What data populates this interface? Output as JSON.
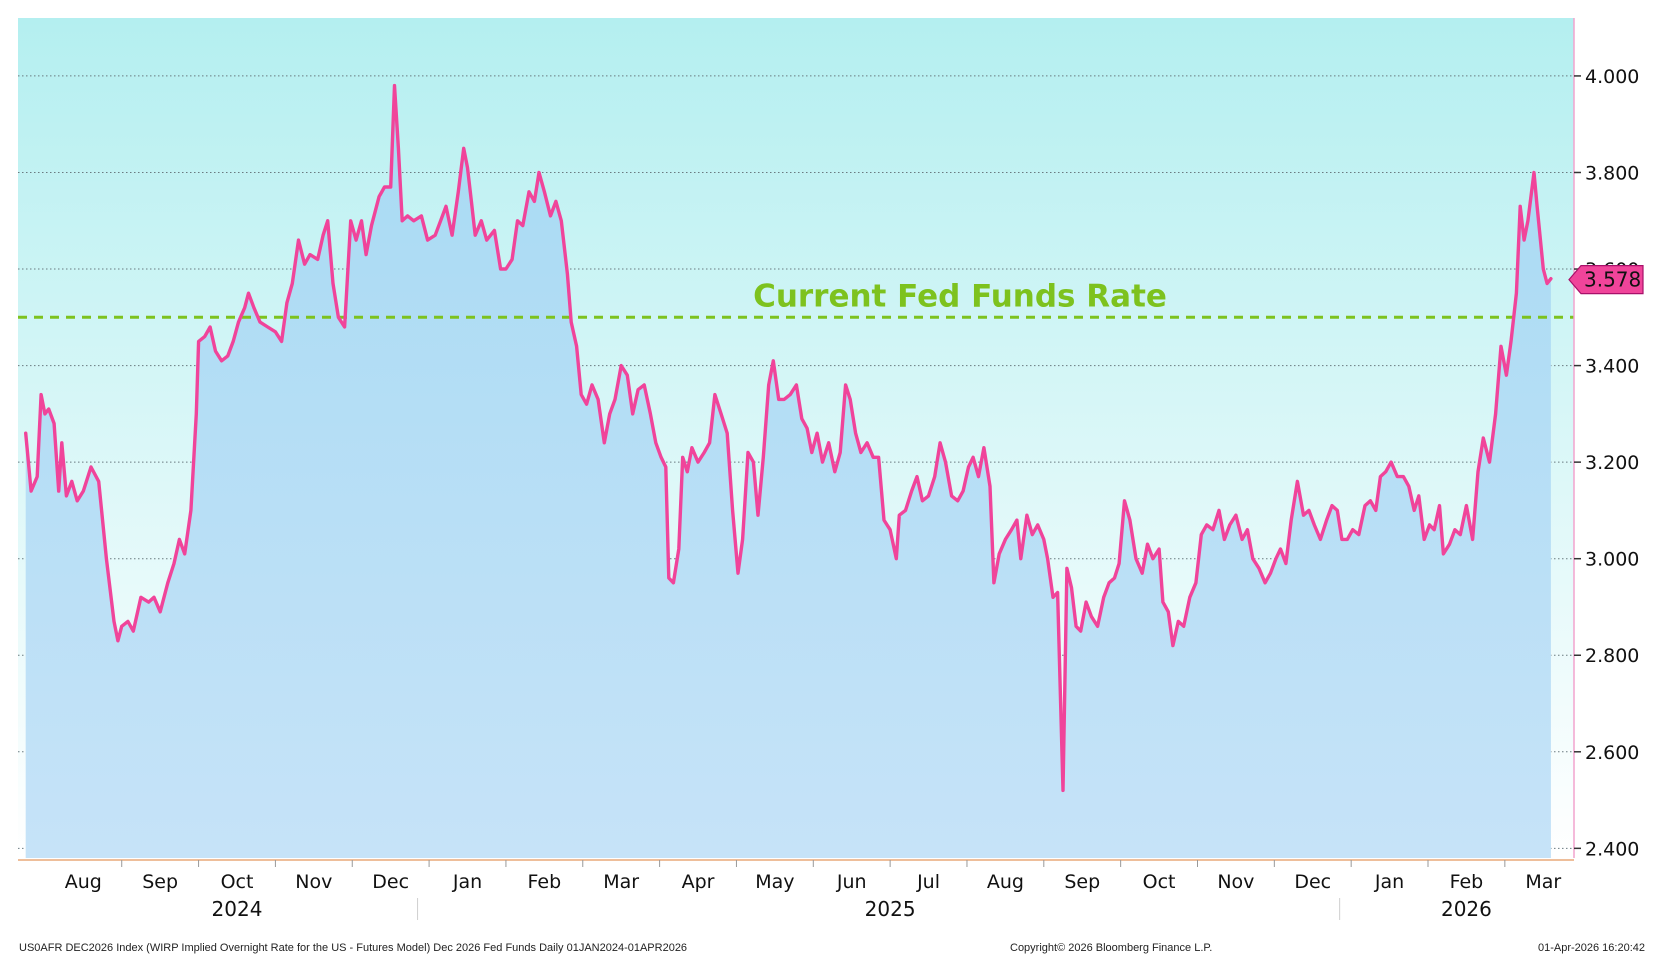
{
  "chart_data": {
    "type": "area",
    "ticker": "US0AFR DEC2026 Index",
    "title": "(WIRP Implied Overnight Rate for the US - Futures Model) Dec 2026 Fed Funds",
    "footer_left": "US0AFR DEC2026 Index (WIRP Implied Overnight Rate for the US - Futures Model) Dec 2026 Fed Funds Daily 01JAN2024-01APR2026",
    "copyright": "Copyright© 2026 Bloomberg Finance L.P.",
    "timestamp": "01-Apr-2026 16:20:42",
    "frequency": "Daily",
    "date_range": "01JAN2024-01APR2026",
    "ylim": [
      2.38,
      4.12
    ],
    "y_ticks": [
      "2.400",
      "2.600",
      "2.800",
      "3.000",
      "3.200",
      "3.400",
      "3.600",
      "3.800",
      "4.000"
    ],
    "y_tick_values": [
      2.4,
      2.6,
      2.8,
      3.0,
      3.2,
      3.4,
      3.6,
      3.8,
      4.0
    ],
    "x_tick_labels": [
      "Aug",
      "Sep",
      "Oct",
      "Nov",
      "Dec",
      "Jan",
      "Feb",
      "Mar",
      "Apr",
      "May",
      "Jun",
      "Jul",
      "Aug",
      "Sep",
      "Oct",
      "Nov",
      "Dec",
      "Jan",
      "Feb",
      "Mar"
    ],
    "x_tick_positions": [
      0.5,
      1.5,
      2.5,
      3.5,
      4.5,
      5.5,
      6.5,
      7.5,
      8.5,
      9.5,
      10.5,
      11.5,
      12.5,
      13.5,
      14.5,
      15.5,
      16.5,
      17.5,
      18.5,
      19.5
    ],
    "xlim": [
      -0.35,
      19.9
    ],
    "year_labels": [
      {
        "label": "2024",
        "x": 2.5
      },
      {
        "label": "2025",
        "x": 11.0
      },
      {
        "label": "2026",
        "x": 18.5
      }
    ],
    "year_dividers": [
      4.85,
      16.85
    ],
    "reference_line": {
      "label": "Current Fed Funds Rate",
      "value": 3.5,
      "color": "#7dc21e"
    },
    "last_value": "3.578",
    "last_value_number": 3.578,
    "line_color": "#f0449a",
    "fill_top_color": "#a7daf3",
    "fill_bottom_color": "#c6e3f8",
    "bg_top_color": "#b4eff0",
    "bg_bottom_color": "#ffffff",
    "series": [
      {
        "name": "Dec 2026 Fed Funds",
        "points": [
          [
            -0.25,
            3.26
          ],
          [
            -0.18,
            3.14
          ],
          [
            -0.1,
            3.17
          ],
          [
            -0.05,
            3.34
          ],
          [
            0.0,
            3.3
          ],
          [
            0.05,
            3.31
          ],
          [
            0.12,
            3.28
          ],
          [
            0.18,
            3.14
          ],
          [
            0.22,
            3.24
          ],
          [
            0.28,
            3.13
          ],
          [
            0.35,
            3.16
          ],
          [
            0.42,
            3.12
          ],
          [
            0.5,
            3.14
          ],
          [
            0.6,
            3.19
          ],
          [
            0.7,
            3.16
          ],
          [
            0.8,
            3.0
          ],
          [
            0.9,
            2.87
          ],
          [
            0.95,
            2.83
          ],
          [
            1.0,
            2.86
          ],
          [
            1.08,
            2.87
          ],
          [
            1.15,
            2.85
          ],
          [
            1.25,
            2.92
          ],
          [
            1.35,
            2.91
          ],
          [
            1.42,
            2.92
          ],
          [
            1.5,
            2.89
          ],
          [
            1.6,
            2.95
          ],
          [
            1.68,
            2.99
          ],
          [
            1.75,
            3.04
          ],
          [
            1.82,
            3.01
          ],
          [
            1.9,
            3.1
          ],
          [
            1.97,
            3.3
          ],
          [
            2.0,
            3.45
          ],
          [
            2.08,
            3.46
          ],
          [
            2.15,
            3.48
          ],
          [
            2.22,
            3.43
          ],
          [
            2.3,
            3.41
          ],
          [
            2.38,
            3.42
          ],
          [
            2.45,
            3.45
          ],
          [
            2.52,
            3.49
          ],
          [
            2.6,
            3.52
          ],
          [
            2.65,
            3.55
          ],
          [
            2.72,
            3.52
          ],
          [
            2.8,
            3.49
          ],
          [
            2.9,
            3.48
          ],
          [
            3.0,
            3.47
          ],
          [
            3.08,
            3.45
          ],
          [
            3.15,
            3.53
          ],
          [
            3.22,
            3.57
          ],
          [
            3.3,
            3.66
          ],
          [
            3.38,
            3.61
          ],
          [
            3.45,
            3.63
          ],
          [
            3.55,
            3.62
          ],
          [
            3.62,
            3.67
          ],
          [
            3.68,
            3.7
          ],
          [
            3.75,
            3.57
          ],
          [
            3.82,
            3.5
          ],
          [
            3.9,
            3.48
          ],
          [
            3.98,
            3.7
          ],
          [
            4.05,
            3.66
          ],
          [
            4.12,
            3.7
          ],
          [
            4.18,
            3.63
          ],
          [
            4.25,
            3.69
          ],
          [
            4.3,
            3.72
          ],
          [
            4.35,
            3.75
          ],
          [
            4.42,
            3.77
          ],
          [
            4.5,
            3.77
          ],
          [
            4.55,
            3.98
          ],
          [
            4.6,
            3.85
          ],
          [
            4.65,
            3.7
          ],
          [
            4.72,
            3.71
          ],
          [
            4.8,
            3.7
          ],
          [
            4.9,
            3.71
          ],
          [
            4.98,
            3.66
          ],
          [
            5.08,
            3.67
          ],
          [
            5.15,
            3.7
          ],
          [
            5.22,
            3.73
          ],
          [
            5.3,
            3.67
          ],
          [
            5.38,
            3.76
          ],
          [
            5.45,
            3.85
          ],
          [
            5.5,
            3.81
          ],
          [
            5.55,
            3.74
          ],
          [
            5.6,
            3.67
          ],
          [
            5.68,
            3.7
          ],
          [
            5.75,
            3.66
          ],
          [
            5.85,
            3.68
          ],
          [
            5.93,
            3.6
          ],
          [
            6.0,
            3.6
          ],
          [
            6.08,
            3.62
          ],
          [
            6.15,
            3.7
          ],
          [
            6.22,
            3.69
          ],
          [
            6.3,
            3.76
          ],
          [
            6.37,
            3.74
          ],
          [
            6.43,
            3.8
          ],
          [
            6.5,
            3.76
          ],
          [
            6.58,
            3.71
          ],
          [
            6.65,
            3.74
          ],
          [
            6.72,
            3.7
          ],
          [
            6.8,
            3.59
          ],
          [
            6.85,
            3.49
          ],
          [
            6.92,
            3.44
          ],
          [
            6.98,
            3.34
          ],
          [
            7.05,
            3.32
          ],
          [
            7.12,
            3.36
          ],
          [
            7.2,
            3.33
          ],
          [
            7.28,
            3.24
          ],
          [
            7.35,
            3.3
          ],
          [
            7.42,
            3.33
          ],
          [
            7.5,
            3.4
          ],
          [
            7.58,
            3.38
          ],
          [
            7.65,
            3.3
          ],
          [
            7.72,
            3.35
          ],
          [
            7.8,
            3.36
          ],
          [
            7.88,
            3.3
          ],
          [
            7.95,
            3.24
          ],
          [
            8.02,
            3.21
          ],
          [
            8.08,
            3.19
          ],
          [
            8.12,
            2.96
          ],
          [
            8.18,
            2.95
          ],
          [
            8.25,
            3.02
          ],
          [
            8.3,
            3.21
          ],
          [
            8.36,
            3.18
          ],
          [
            8.42,
            3.23
          ],
          [
            8.5,
            3.2
          ],
          [
            8.58,
            3.22
          ],
          [
            8.65,
            3.24
          ],
          [
            8.72,
            3.34
          ],
          [
            8.8,
            3.3
          ],
          [
            8.88,
            3.26
          ],
          [
            8.95,
            3.1
          ],
          [
            9.02,
            2.97
          ],
          [
            9.08,
            3.04
          ],
          [
            9.15,
            3.22
          ],
          [
            9.22,
            3.2
          ],
          [
            9.28,
            3.09
          ],
          [
            9.35,
            3.21
          ],
          [
            9.42,
            3.36
          ],
          [
            9.48,
            3.41
          ],
          [
            9.55,
            3.33
          ],
          [
            9.62,
            3.33
          ],
          [
            9.7,
            3.34
          ],
          [
            9.78,
            3.36
          ],
          [
            9.85,
            3.29
          ],
          [
            9.92,
            3.27
          ],
          [
            9.98,
            3.22
          ],
          [
            10.05,
            3.26
          ],
          [
            10.12,
            3.2
          ],
          [
            10.2,
            3.24
          ],
          [
            10.28,
            3.18
          ],
          [
            10.35,
            3.22
          ],
          [
            10.42,
            3.36
          ],
          [
            10.48,
            3.33
          ],
          [
            10.55,
            3.26
          ],
          [
            10.62,
            3.22
          ],
          [
            10.7,
            3.24
          ],
          [
            10.78,
            3.21
          ],
          [
            10.85,
            3.21
          ],
          [
            10.92,
            3.08
          ],
          [
            11.0,
            3.06
          ],
          [
            11.08,
            3.0
          ],
          [
            11.12,
            3.09
          ],
          [
            11.2,
            3.1
          ],
          [
            11.28,
            3.14
          ],
          [
            11.35,
            3.17
          ],
          [
            11.42,
            3.12
          ],
          [
            11.5,
            3.13
          ],
          [
            11.58,
            3.17
          ],
          [
            11.65,
            3.24
          ],
          [
            11.72,
            3.2
          ],
          [
            11.8,
            3.13
          ],
          [
            11.88,
            3.12
          ],
          [
            11.95,
            3.14
          ],
          [
            12.02,
            3.19
          ],
          [
            12.08,
            3.21
          ],
          [
            12.15,
            3.17
          ],
          [
            12.22,
            3.23
          ],
          [
            12.3,
            3.15
          ],
          [
            12.35,
            2.95
          ],
          [
            12.42,
            3.01
          ],
          [
            12.5,
            3.04
          ],
          [
            12.58,
            3.06
          ],
          [
            12.65,
            3.08
          ],
          [
            12.7,
            3.0
          ],
          [
            12.78,
            3.09
          ],
          [
            12.85,
            3.05
          ],
          [
            12.92,
            3.07
          ],
          [
            13.0,
            3.04
          ],
          [
            13.05,
            3.0
          ],
          [
            13.12,
            2.92
          ],
          [
            13.18,
            2.93
          ],
          [
            13.25,
            2.52
          ],
          [
            13.3,
            2.98
          ],
          [
            13.36,
            2.94
          ],
          [
            13.42,
            2.86
          ],
          [
            13.48,
            2.85
          ],
          [
            13.55,
            2.91
          ],
          [
            13.62,
            2.88
          ],
          [
            13.7,
            2.86
          ],
          [
            13.78,
            2.92
          ],
          [
            13.85,
            2.95
          ],
          [
            13.92,
            2.96
          ],
          [
            13.98,
            2.99
          ],
          [
            14.05,
            3.12
          ],
          [
            14.12,
            3.08
          ],
          [
            14.2,
            3.0
          ],
          [
            14.28,
            2.97
          ],
          [
            14.35,
            3.03
          ],
          [
            14.42,
            3.0
          ],
          [
            14.5,
            3.02
          ],
          [
            14.55,
            2.91
          ],
          [
            14.62,
            2.89
          ],
          [
            14.68,
            2.82
          ],
          [
            14.75,
            2.87
          ],
          [
            14.82,
            2.86
          ],
          [
            14.9,
            2.92
          ],
          [
            14.98,
            2.95
          ],
          [
            15.05,
            3.05
          ],
          [
            15.12,
            3.07
          ],
          [
            15.2,
            3.06
          ],
          [
            15.28,
            3.1
          ],
          [
            15.35,
            3.04
          ],
          [
            15.42,
            3.07
          ],
          [
            15.5,
            3.09
          ],
          [
            15.58,
            3.04
          ],
          [
            15.65,
            3.06
          ],
          [
            15.72,
            3.0
          ],
          [
            15.8,
            2.98
          ],
          [
            15.88,
            2.95
          ],
          [
            15.95,
            2.97
          ],
          [
            16.02,
            3.0
          ],
          [
            16.08,
            3.02
          ],
          [
            16.15,
            2.99
          ],
          [
            16.22,
            3.08
          ],
          [
            16.3,
            3.16
          ],
          [
            16.38,
            3.09
          ],
          [
            16.45,
            3.1
          ],
          [
            16.52,
            3.07
          ],
          [
            16.6,
            3.04
          ],
          [
            16.68,
            3.08
          ],
          [
            16.75,
            3.11
          ],
          [
            16.82,
            3.1
          ],
          [
            16.88,
            3.04
          ],
          [
            16.95,
            3.04
          ],
          [
            17.02,
            3.06
          ],
          [
            17.1,
            3.05
          ],
          [
            17.18,
            3.11
          ],
          [
            17.25,
            3.12
          ],
          [
            17.32,
            3.1
          ],
          [
            17.38,
            3.17
          ],
          [
            17.45,
            3.18
          ],
          [
            17.52,
            3.2
          ],
          [
            17.6,
            3.17
          ],
          [
            17.68,
            3.17
          ],
          [
            17.75,
            3.15
          ],
          [
            17.82,
            3.1
          ],
          [
            17.88,
            3.13
          ],
          [
            17.95,
            3.04
          ],
          [
            18.02,
            3.07
          ],
          [
            18.08,
            3.06
          ],
          [
            18.15,
            3.11
          ],
          [
            18.2,
            3.01
          ],
          [
            18.28,
            3.03
          ],
          [
            18.35,
            3.06
          ],
          [
            18.42,
            3.05
          ],
          [
            18.5,
            3.11
          ],
          [
            18.58,
            3.04
          ],
          [
            18.65,
            3.18
          ],
          [
            18.72,
            3.25
          ],
          [
            18.8,
            3.2
          ],
          [
            18.88,
            3.3
          ],
          [
            18.95,
            3.44
          ],
          [
            19.02,
            3.38
          ],
          [
            19.08,
            3.45
          ],
          [
            19.15,
            3.55
          ],
          [
            19.2,
            3.73
          ],
          [
            19.25,
            3.66
          ],
          [
            19.3,
            3.7
          ],
          [
            19.38,
            3.8
          ],
          [
            19.42,
            3.73
          ],
          [
            19.5,
            3.6
          ],
          [
            19.55,
            3.57
          ],
          [
            19.6,
            3.58
          ]
        ]
      }
    ]
  }
}
